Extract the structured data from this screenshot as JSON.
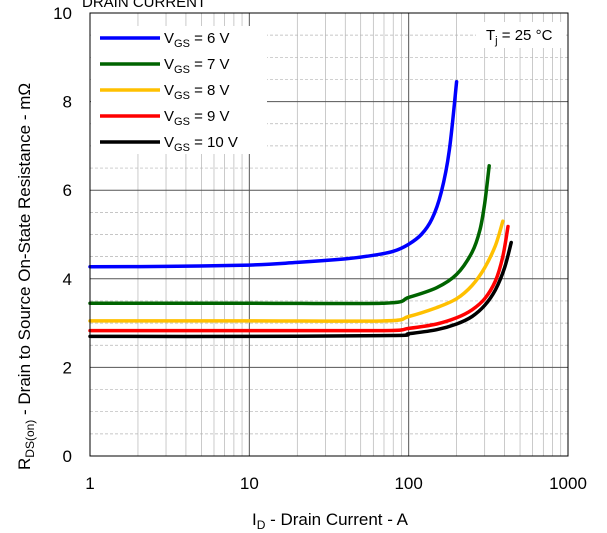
{
  "chart_data": {
    "type": "line",
    "title": "DRAIN CURRENT",
    "xlabel_main": "I",
    "xlabel_sub": "D",
    "xlabel_rest": " - Drain Current - A",
    "ylabel_main": "R",
    "ylabel_sub": "DS(on)",
    "ylabel_rest": " - Drain to Source On-State Resistance - mΩ",
    "xscale": "log",
    "xlim": [
      1,
      1000
    ],
    "ylim": [
      0,
      10
    ],
    "xticks": [
      1,
      10,
      100,
      1000
    ],
    "xtick_labels": [
      "1",
      "10",
      "100",
      "1000"
    ],
    "yticks": [
      0,
      2,
      4,
      6,
      8,
      10
    ],
    "ytick_labels": [
      "0",
      "2",
      "4",
      "6",
      "8",
      "10"
    ],
    "grid": true,
    "legend_position": "top-left",
    "annotation": {
      "main": "T",
      "sub": "j",
      "rest": " = 25 °C"
    },
    "series": [
      {
        "name_main": "V",
        "name_sub": "GS",
        "name_rest": " = 6 V",
        "color": "#0000ff",
        "points": [
          [
            1,
            4.27
          ],
          [
            3,
            4.28
          ],
          [
            10,
            4.31
          ],
          [
            20,
            4.37
          ],
          [
            40,
            4.45
          ],
          [
            60,
            4.53
          ],
          [
            80,
            4.62
          ],
          [
            100,
            4.78
          ],
          [
            120,
            5.0
          ],
          [
            140,
            5.35
          ],
          [
            160,
            5.95
          ],
          [
            180,
            6.9
          ],
          [
            200,
            8.45
          ]
        ]
      },
      {
        "name_main": "V",
        "name_sub": "GS",
        "name_rest": " = 7 V",
        "color": "#006400",
        "points": [
          [
            1,
            3.45
          ],
          [
            10,
            3.45
          ],
          [
            70,
            3.45
          ],
          [
            100,
            3.58
          ],
          [
            150,
            3.8
          ],
          [
            200,
            4.1
          ],
          [
            250,
            4.6
          ],
          [
            280,
            5.1
          ],
          [
            300,
            5.7
          ],
          [
            320,
            6.55
          ]
        ]
      },
      {
        "name_main": "V",
        "name_sub": "GS",
        "name_rest": " = 8 V",
        "color": "#ffc000",
        "points": [
          [
            1,
            3.05
          ],
          [
            10,
            3.05
          ],
          [
            70,
            3.05
          ],
          [
            100,
            3.15
          ],
          [
            150,
            3.35
          ],
          [
            200,
            3.55
          ],
          [
            250,
            3.85
          ],
          [
            300,
            4.25
          ],
          [
            350,
            4.75
          ],
          [
            390,
            5.3
          ]
        ]
      },
      {
        "name_main": "V",
        "name_sub": "GS",
        "name_rest": " = 9 V",
        "color": "#ff0000",
        "points": [
          [
            1,
            2.83
          ],
          [
            10,
            2.83
          ],
          [
            70,
            2.83
          ],
          [
            100,
            2.88
          ],
          [
            150,
            2.98
          ],
          [
            200,
            3.12
          ],
          [
            250,
            3.3
          ],
          [
            300,
            3.55
          ],
          [
            350,
            3.95
          ],
          [
            390,
            4.5
          ],
          [
            420,
            5.18
          ]
        ]
      },
      {
        "name_main": "V",
        "name_sub": "GS",
        "name_rest": " = 10 V",
        "color": "#000000",
        "points": [
          [
            1,
            2.7
          ],
          [
            10,
            2.7
          ],
          [
            80,
            2.72
          ],
          [
            100,
            2.76
          ],
          [
            150,
            2.85
          ],
          [
            200,
            2.98
          ],
          [
            250,
            3.15
          ],
          [
            300,
            3.4
          ],
          [
            350,
            3.75
          ],
          [
            400,
            4.25
          ],
          [
            440,
            4.82
          ]
        ]
      }
    ]
  }
}
